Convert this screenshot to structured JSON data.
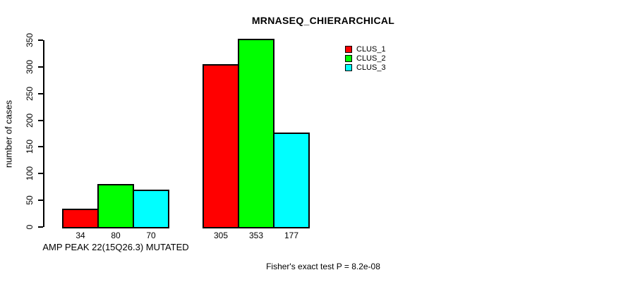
{
  "chart_data": {
    "type": "bar",
    "title": "MRNASEQ_CHIERARCHICAL",
    "ylabel": "number of cases",
    "xlabel": "",
    "ylim": [
      0,
      350
    ],
    "yticks": [
      0,
      50,
      100,
      150,
      200,
      250,
      300,
      350
    ],
    "grid": false,
    "legend_position": "top-right",
    "categories": [
      "AMP PEAK 22(15Q26.3) MUTATED",
      ""
    ],
    "series": [
      {
        "name": "CLUS_1",
        "color": "#FF0000",
        "values": [
          34,
          305
        ]
      },
      {
        "name": "CLUS_2",
        "color": "#00FF00",
        "values": [
          80,
          353
        ]
      },
      {
        "name": "CLUS_3",
        "color": "#00FFFF",
        "values": [
          70,
          177
        ]
      }
    ],
    "bar_value_labels": [
      [
        34,
        80,
        70
      ],
      [
        305,
        353,
        177
      ]
    ],
    "annotation": "Fisher's exact test P = 8.2e-08"
  }
}
